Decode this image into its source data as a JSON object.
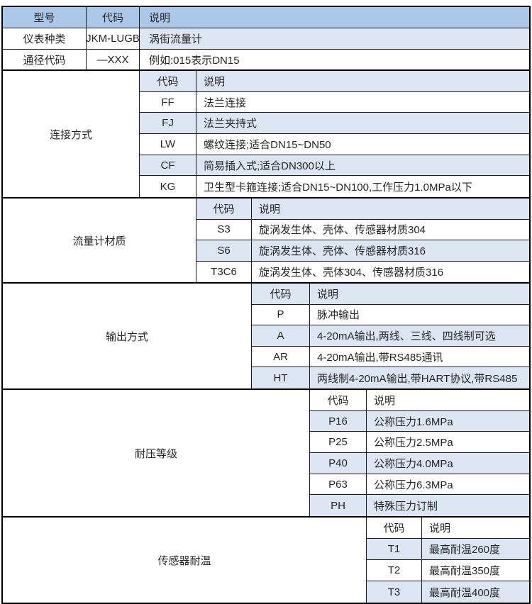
{
  "table": {
    "header": {
      "model": "型号",
      "code": "代码",
      "desc": "说明"
    },
    "rows": [
      {
        "label": "仪表种类",
        "code": "JKM-LUGB",
        "desc": "涡街流量计"
      },
      {
        "label": "通径代码",
        "code": "—XXX",
        "desc": "例如:015表示DN15"
      }
    ],
    "sections": [
      {
        "label": "连接方式",
        "sub": {
          "code": "代码",
          "desc": "说明"
        },
        "rows": [
          {
            "code": "FF",
            "desc": "法兰连接"
          },
          {
            "code": "FJ",
            "desc": "法兰夹持式"
          },
          {
            "code": "LW",
            "desc": "螺纹连接;适合DN15~DN50"
          },
          {
            "code": "CF",
            "desc": "简易插入式;适合DN300以上"
          },
          {
            "code": "KG",
            "desc": "卫生型卡箍连接;适合DN15~DN100,工作压力1.0MPa以下"
          }
        ]
      },
      {
        "label": "流量计材质",
        "sub": {
          "code": "代码",
          "desc": "说明"
        },
        "rows": [
          {
            "code": "S3",
            "desc": "旋涡发生体、壳体、传感器材质304"
          },
          {
            "code": "S6",
            "desc": "旋涡发生体、壳体、传感器材质316"
          },
          {
            "code": "T3C6",
            "desc": "旋涡发生体、壳体304、传感器材质316"
          }
        ]
      },
      {
        "label": "输出方式",
        "sub": {
          "code": "代码",
          "desc": "说明"
        },
        "rows": [
          {
            "code": "P",
            "desc": "脉冲输出"
          },
          {
            "code": "A",
            "desc": "4-20mA输出,两线、三线、四线制可选"
          },
          {
            "code": "AR",
            "desc": "4-20mA输出,带RS485通讯"
          },
          {
            "code": "HT",
            "desc": "两线制4-20mA输出,带HART协议,带RS485"
          }
        ]
      },
      {
        "label": "耐压等级",
        "sub": {
          "code": "代码",
          "desc": "说明"
        },
        "rows": [
          {
            "code": "P16",
            "desc": "公称压力1.6MPa"
          },
          {
            "code": "P25",
            "desc": "公称压力2.5MPa"
          },
          {
            "code": "P40",
            "desc": "公称压力4.0MPa"
          },
          {
            "code": "P63",
            "desc": "公称压力6.3MPa"
          },
          {
            "code": "PH",
            "desc": "特殊压力订制"
          }
        ]
      },
      {
        "label": "传感器耐温",
        "sub": {
          "code": "代码",
          "desc": "说明"
        },
        "rows": [
          {
            "code": "T1",
            "desc": "最高耐温260度"
          },
          {
            "code": "T2",
            "desc": "最高耐温350度"
          },
          {
            "code": "T3",
            "desc": "最高耐温400度"
          }
        ]
      }
    ],
    "colors": {
      "header_bg": "#ACC8E8",
      "alt_row_bg": "#DCE6F2",
      "row_bg": "#FFFFFF",
      "border": "#000000",
      "text": "#262626"
    }
  }
}
